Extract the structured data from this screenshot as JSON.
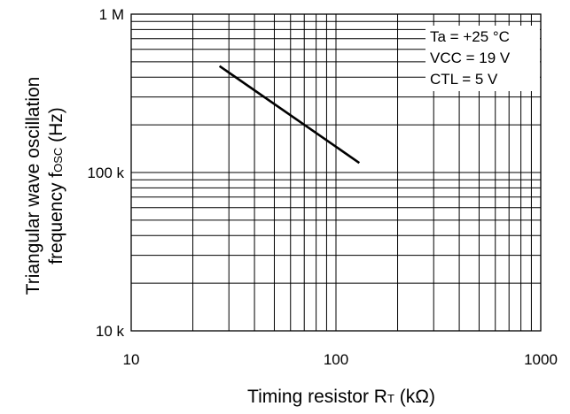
{
  "chart_data": {
    "type": "line",
    "x_scale": "log",
    "y_scale": "log",
    "xlim": [
      10,
      1000
    ],
    "ylim": [
      10000,
      1000000
    ],
    "x_ticks": [
      10,
      100,
      1000
    ],
    "x_tick_labels": [
      "10",
      "100",
      "1000"
    ],
    "y_ticks": [
      10000,
      100000,
      1000000
    ],
    "y_tick_labels": [
      "10 k",
      "100 k",
      "1 M"
    ],
    "xlabel": {
      "main": "Timing resistor R",
      "sub": "T",
      "unit": " (kΩ)"
    },
    "ylabel": {
      "line1": "Triangular wave oscillation",
      "line2_main": "frequency f",
      "line2_sub": "OSC",
      "line2_unit": " (Hz)"
    },
    "grid": true,
    "conditions": [
      "Ta = +25 °C",
      "VCC = 19 V",
      "CTL = 5 V"
    ],
    "series": [
      {
        "x": [
          27,
          130
        ],
        "y": [
          470000,
          115000
        ],
        "color": "#000000"
      }
    ]
  }
}
